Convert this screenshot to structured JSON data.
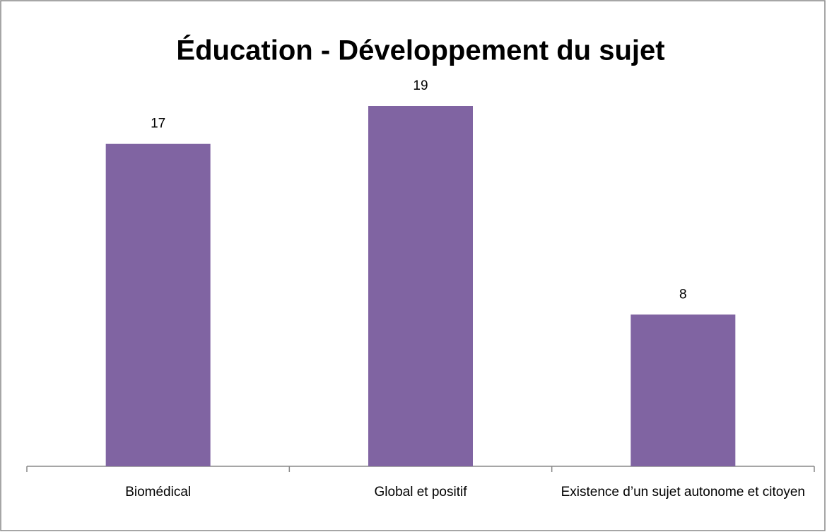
{
  "chart_data": {
    "type": "bar",
    "title": "Éducation - Développement du sujet",
    "categories": [
      "Biomédical",
      "Global et positif",
      "Existence d’un sujet autonome et citoyen"
    ],
    "values": [
      17,
      19,
      8
    ],
    "color": "#8064a2"
  }
}
